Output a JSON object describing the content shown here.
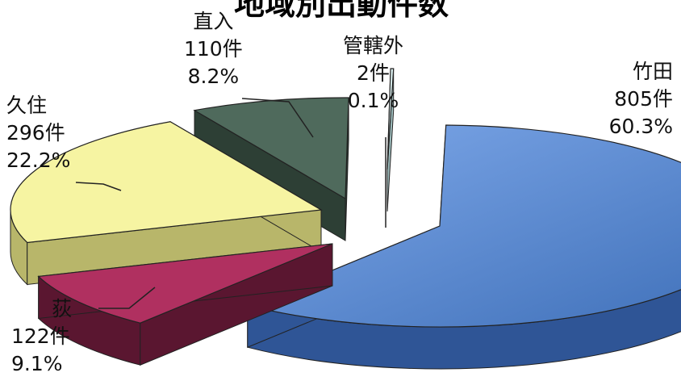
{
  "chart_data": {
    "type": "pie",
    "title": "地域別出動件数",
    "slices": [
      {
        "name": "竹田",
        "count_label": "805件",
        "percent_label": "60.3%",
        "value": 805,
        "percent": 60.3,
        "color": "#5b8fd8"
      },
      {
        "name": "荻",
        "count_label": "122件",
        "percent_label": "9.1%",
        "value": 122,
        "percent": 9.1,
        "color": "#b03060"
      },
      {
        "name": "久住",
        "count_label": "296件",
        "percent_label": "22.2%",
        "value": 296,
        "percent": 22.2,
        "color": "#f6f4a2"
      },
      {
        "name": "直入",
        "count_label": "110件",
        "percent_label": "8.2%",
        "value": 110,
        "percent": 8.2,
        "color": "#4f6a5c"
      },
      {
        "name": "管轄外",
        "count_label": "2件",
        "percent_label": "0.1%",
        "value": 2,
        "percent": 0.1,
        "color": "#dff4f4"
      }
    ],
    "legend": "none",
    "labels": "outside with leader lines"
  }
}
